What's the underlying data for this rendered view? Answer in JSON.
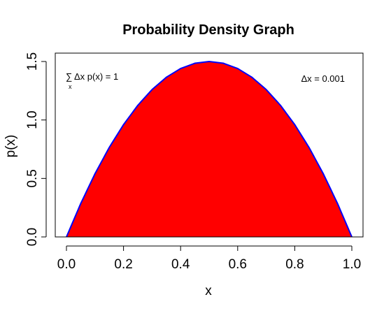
{
  "chart_data": {
    "type": "area",
    "title": "Probability Density Graph",
    "xlabel": "x",
    "ylabel": "p(x)",
    "xlim": [
      0,
      1
    ],
    "ylim": [
      0,
      1.5
    ],
    "x_ticks": [
      "0.0",
      "0.2",
      "0.4",
      "0.6",
      "0.8",
      "1.0"
    ],
    "y_ticks": [
      "0.0",
      "0.5",
      "1.0",
      "1.5"
    ],
    "series": [
      {
        "x": [
          0.0,
          0.05,
          0.1,
          0.15,
          0.2,
          0.25,
          0.3,
          0.35,
          0.4,
          0.45,
          0.5,
          0.55,
          0.6,
          0.65,
          0.7,
          0.75,
          0.8,
          0.85,
          0.9,
          0.95,
          1.0
        ],
        "y": [
          0.0,
          0.285,
          0.54,
          0.765,
          0.96,
          1.125,
          1.26,
          1.365,
          1.44,
          1.485,
          1.5,
          1.485,
          1.44,
          1.365,
          1.26,
          1.125,
          0.96,
          0.765,
          0.54,
          0.285,
          0.0
        ]
      }
    ],
    "fill_color": "#ff0000",
    "line_color": "#0000ff",
    "grid": false,
    "annotations": {
      "sum_symbol": "∑",
      "sum_subscript": "x",
      "sum_text": "Δx p(x) = 1",
      "dx_text": "Δx = 0.001"
    }
  }
}
